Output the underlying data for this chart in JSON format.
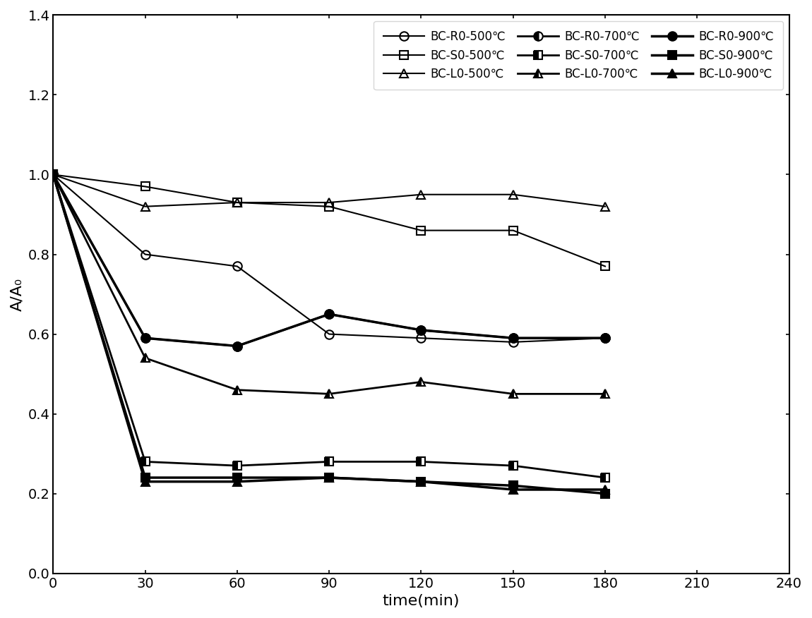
{
  "x": [
    0,
    30,
    60,
    90,
    120,
    150,
    180
  ],
  "series": [
    {
      "label": "BC-R0-500℃",
      "y": [
        1.0,
        0.8,
        0.77,
        0.6,
        0.59,
        0.58,
        0.59
      ],
      "marker": "o",
      "fillstyle": "none",
      "linewidth": 1.5,
      "markersize": 9,
      "markeredgewidth": 1.5
    },
    {
      "label": "BC-R0-700℃",
      "y": [
        1.0,
        0.59,
        0.57,
        0.65,
        0.61,
        0.59,
        0.59
      ],
      "marker": "o",
      "fillstyle": "left",
      "linewidth": 2.0,
      "markersize": 9,
      "markeredgewidth": 1.5
    },
    {
      "label": "BC-R0-900℃",
      "y": [
        1.0,
        0.59,
        0.57,
        0.65,
        0.61,
        0.59,
        0.59
      ],
      "marker": "o",
      "fillstyle": "full",
      "linewidth": 2.5,
      "markersize": 9,
      "markeredgewidth": 1.5
    },
    {
      "label": "BC-S0-500℃",
      "y": [
        1.0,
        0.97,
        0.93,
        0.92,
        0.86,
        0.86,
        0.77
      ],
      "marker": "s",
      "fillstyle": "none",
      "linewidth": 1.5,
      "markersize": 9,
      "markeredgewidth": 1.5
    },
    {
      "label": "BC-S0-700℃",
      "y": [
        1.0,
        0.28,
        0.27,
        0.28,
        0.28,
        0.27,
        0.24
      ],
      "marker": "s",
      "fillstyle": "left",
      "linewidth": 2.0,
      "markersize": 9,
      "markeredgewidth": 1.5
    },
    {
      "label": "BC-S0-900℃",
      "y": [
        1.0,
        0.24,
        0.24,
        0.24,
        0.23,
        0.22,
        0.2
      ],
      "marker": "s",
      "fillstyle": "full",
      "linewidth": 2.5,
      "markersize": 9,
      "markeredgewidth": 1.5
    },
    {
      "label": "BC-L0-500℃",
      "y": [
        1.0,
        0.92,
        0.93,
        0.93,
        0.95,
        0.95,
        0.92
      ],
      "marker": "^",
      "fillstyle": "none",
      "linewidth": 1.5,
      "markersize": 9,
      "markeredgewidth": 1.5
    },
    {
      "label": "BC-L0-700℃",
      "y": [
        1.0,
        0.54,
        0.46,
        0.45,
        0.48,
        0.45,
        0.45
      ],
      "marker": "^",
      "fillstyle": "left",
      "linewidth": 2.0,
      "markersize": 9,
      "markeredgewidth": 1.5
    },
    {
      "label": "BC-L0-900℃",
      "y": [
        1.0,
        0.23,
        0.23,
        0.24,
        0.23,
        0.21,
        0.21
      ],
      "marker": "^",
      "fillstyle": "full",
      "linewidth": 2.5,
      "markersize": 9,
      "markeredgewidth": 1.5
    }
  ],
  "xlabel": "time(min)",
  "ylabel": "A/A₀",
  "xlim": [
    0,
    240
  ],
  "ylim": [
    0.0,
    1.4
  ],
  "xticks": [
    0,
    30,
    60,
    90,
    120,
    150,
    180,
    210,
    240
  ],
  "yticks": [
    0.0,
    0.2,
    0.4,
    0.6,
    0.8,
    1.0,
    1.2,
    1.4
  ],
  "label_fontsize": 16,
  "tick_fontsize": 14,
  "legend_fontsize": 12
}
